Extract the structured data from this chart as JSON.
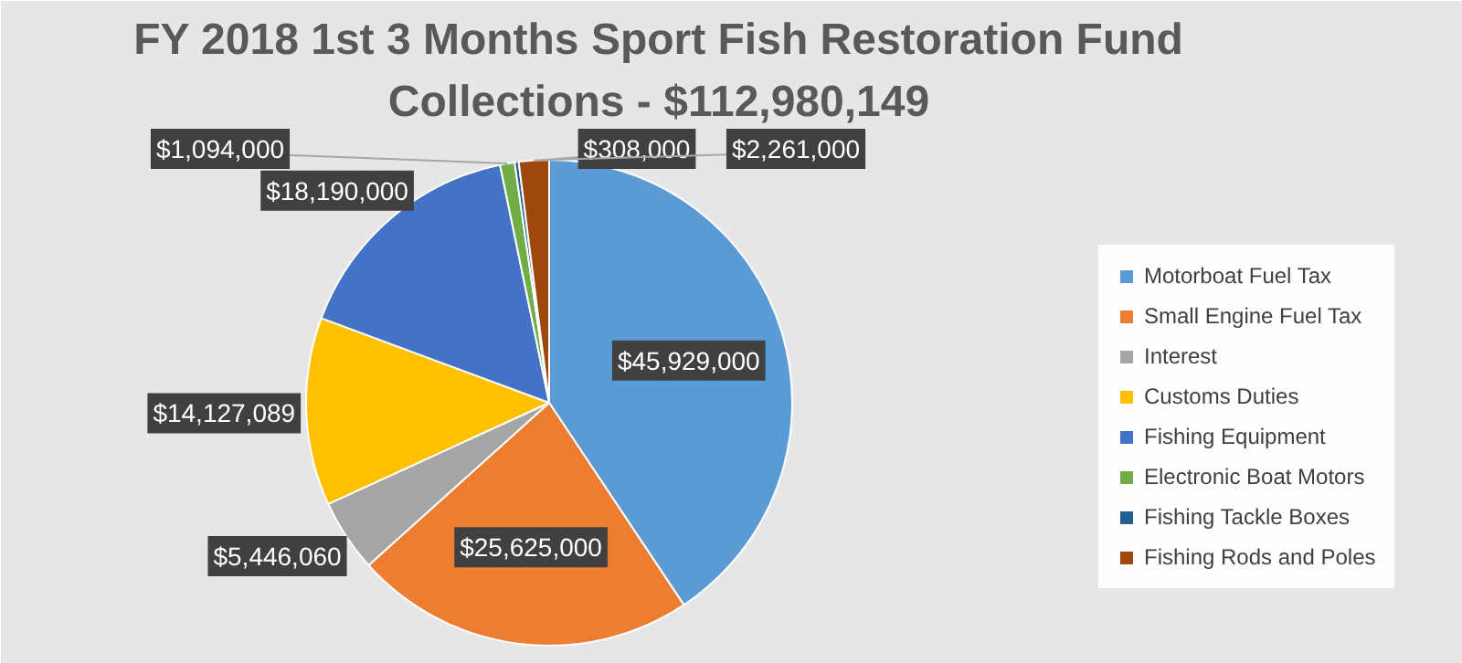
{
  "chart_data": {
    "type": "pie",
    "title": "FY 2018 1st 3 Months Sport Fish Restoration Fund\nCollections - $112,980,149",
    "categories": [
      "Motorboat Fuel Tax",
      "Small Engine Fuel Tax",
      "Interest",
      "Customs Duties",
      "Fishing Equipment",
      "Electronic Boat Motors",
      "Fishing Tackle Boxes",
      "Fishing Rods and Poles"
    ],
    "values": [
      45929000,
      25625000,
      5446060,
      14127089,
      18190000,
      1094000,
      308000,
      2261000
    ],
    "colors": [
      "#5b9bd5",
      "#ed7d31",
      "#a5a5a5",
      "#ffc000",
      "#4472c4",
      "#70ad47",
      "#255e91",
      "#9e480e"
    ],
    "value_labels": [
      "$45,929,000",
      "$25,625,000",
      "$5,446,060",
      "$14,127,089",
      "$18,190,000",
      "$1,094,000",
      "$308,000",
      "$2,261,000"
    ],
    "legend": "right"
  }
}
